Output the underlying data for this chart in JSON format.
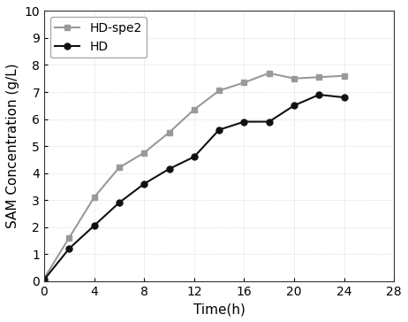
{
  "hd_spe2_x": [
    0,
    2,
    4,
    6,
    8,
    10,
    12,
    14,
    16,
    18,
    20,
    22,
    24
  ],
  "hd_spe2_y": [
    0.1,
    1.6,
    3.1,
    4.2,
    4.75,
    5.5,
    6.35,
    7.05,
    7.35,
    7.7,
    7.5,
    7.55,
    7.6
  ],
  "hd_x": [
    0,
    2,
    4,
    6,
    8,
    10,
    12,
    14,
    16,
    18,
    20,
    22,
    24
  ],
  "hd_y": [
    0.05,
    1.2,
    2.05,
    2.9,
    3.6,
    4.15,
    4.6,
    5.6,
    5.9,
    5.9,
    6.5,
    6.9,
    6.8
  ],
  "hd_spe2_color": "#999999",
  "hd_color": "#111111",
  "hd_spe2_marker": "s",
  "hd_marker": "o",
  "xlabel": "Time(h)",
  "ylabel": "SAM Concentration (g/L)",
  "xlim": [
    0,
    28
  ],
  "ylim": [
    0,
    10
  ],
  "xticks": [
    0,
    4,
    8,
    12,
    16,
    20,
    24,
    28
  ],
  "yticks": [
    0,
    1,
    2,
    3,
    4,
    5,
    6,
    7,
    8,
    9,
    10
  ],
  "legend_labels": [
    "HD-spe2",
    "HD"
  ],
  "background_color": "#ffffff",
  "grid_color": "#cccccc",
  "axis_fontsize": 11,
  "legend_fontsize": 10,
  "tick_fontsize": 10,
  "linewidth": 1.5,
  "markersize": 5
}
